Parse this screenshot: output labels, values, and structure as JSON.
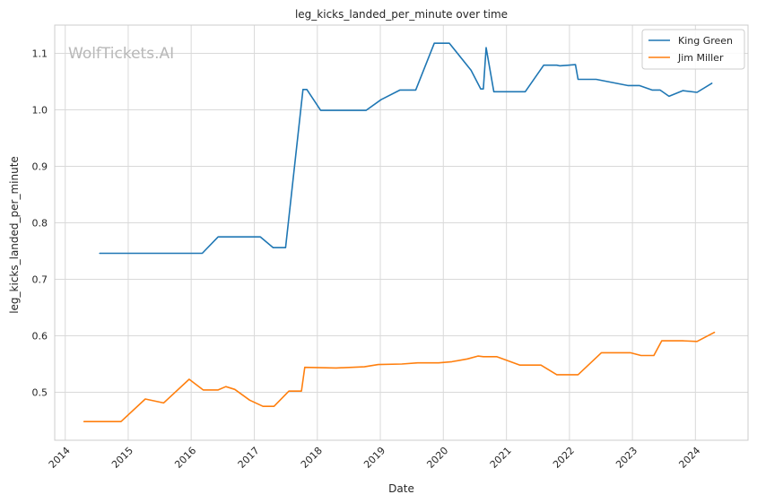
{
  "chart_data": {
    "type": "line",
    "title": "leg_kicks_landed_per_minute over time",
    "xlabel": "Date",
    "ylabel": "leg_kicks_landed_per_minute",
    "watermark": "WolfTickets.AI",
    "xlim": [
      "2013-11-01",
      "2024-11-01"
    ],
    "ylim": [
      0.415,
      1.15
    ],
    "x_ticks": [
      "2014",
      "2015",
      "2016",
      "2017",
      "2018",
      "2019",
      "2020",
      "2021",
      "2022",
      "2023",
      "2024"
    ],
    "y_ticks": [
      0.5,
      0.6,
      0.7,
      0.8,
      0.9,
      1.0,
      1.1
    ],
    "y_tick_labels": [
      "0.5",
      "0.6",
      "0.7",
      "0.8",
      "0.9",
      "1.0",
      "1.1"
    ],
    "grid": true,
    "legend_position": "top-right",
    "series": [
      {
        "name": "King Green",
        "color": "#1f77b4",
        "points": [
          [
            "2014-07-20",
            0.746
          ],
          [
            "2016-03-05",
            0.746
          ],
          [
            "2016-06-05",
            0.775
          ],
          [
            "2017-02-05",
            0.775
          ],
          [
            "2017-04-20",
            0.756
          ],
          [
            "2017-07-01",
            0.756
          ],
          [
            "2017-10-10",
            1.036
          ],
          [
            "2017-11-01",
            1.036
          ],
          [
            "2018-01-20",
            0.999
          ],
          [
            "2018-10-10",
            0.999
          ],
          [
            "2019-01-05",
            1.018
          ],
          [
            "2019-04-25",
            1.035
          ],
          [
            "2019-07-25",
            1.035
          ],
          [
            "2019-11-10",
            1.118
          ],
          [
            "2020-02-05",
            1.118
          ],
          [
            "2020-06-10",
            1.07
          ],
          [
            "2020-08-05",
            1.037
          ],
          [
            "2020-08-20",
            1.037
          ],
          [
            "2020-09-05",
            1.11
          ],
          [
            "2020-10-20",
            1.032
          ],
          [
            "2021-04-20",
            1.032
          ],
          [
            "2021-08-05",
            1.079
          ],
          [
            "2021-10-20",
            1.079
          ],
          [
            "2021-11-05",
            1.078
          ],
          [
            "2022-02-05",
            1.08
          ],
          [
            "2022-02-20",
            1.054
          ],
          [
            "2022-06-05",
            1.054
          ],
          [
            "2022-12-05",
            1.043
          ],
          [
            "2023-02-10",
            1.043
          ],
          [
            "2023-04-25",
            1.035
          ],
          [
            "2023-06-10",
            1.035
          ],
          [
            "2023-08-01",
            1.024
          ],
          [
            "2023-10-20",
            1.034
          ],
          [
            "2024-01-10",
            1.031
          ],
          [
            "2024-04-05",
            1.047
          ]
        ]
      },
      {
        "name": "Jim Miller",
        "color": "#ff7f0e",
        "points": [
          [
            "2014-04-20",
            0.448
          ],
          [
            "2014-11-20",
            0.448
          ],
          [
            "2015-04-10",
            0.488
          ],
          [
            "2015-07-25",
            0.481
          ],
          [
            "2015-12-20",
            0.523
          ],
          [
            "2016-03-10",
            0.504
          ],
          [
            "2016-06-05",
            0.504
          ],
          [
            "2016-07-20",
            0.51
          ],
          [
            "2016-09-10",
            0.505
          ],
          [
            "2016-12-05",
            0.486
          ],
          [
            "2017-02-20",
            0.475
          ],
          [
            "2017-04-25",
            0.475
          ],
          [
            "2017-07-20",
            0.502
          ],
          [
            "2017-10-01",
            0.502
          ],
          [
            "2017-10-20",
            0.544
          ],
          [
            "2018-04-20",
            0.543
          ],
          [
            "2018-10-01",
            0.545
          ],
          [
            "2018-12-20",
            0.549
          ],
          [
            "2019-05-05",
            0.55
          ],
          [
            "2019-08-05",
            0.552
          ],
          [
            "2019-12-05",
            0.552
          ],
          [
            "2020-02-20",
            0.554
          ],
          [
            "2020-05-20",
            0.559
          ],
          [
            "2020-07-20",
            0.564
          ],
          [
            "2020-08-20",
            0.563
          ],
          [
            "2020-11-05",
            0.563
          ],
          [
            "2021-03-20",
            0.548
          ],
          [
            "2021-07-20",
            0.548
          ],
          [
            "2021-10-20",
            0.531
          ],
          [
            "2022-02-20",
            0.531
          ],
          [
            "2022-07-05",
            0.57
          ],
          [
            "2022-12-20",
            0.57
          ],
          [
            "2023-02-20",
            0.565
          ],
          [
            "2023-05-05",
            0.565
          ],
          [
            "2023-06-20",
            0.591
          ],
          [
            "2023-10-20",
            0.591
          ],
          [
            "2024-01-10",
            0.59
          ],
          [
            "2024-04-20",
            0.606
          ]
        ]
      }
    ]
  }
}
